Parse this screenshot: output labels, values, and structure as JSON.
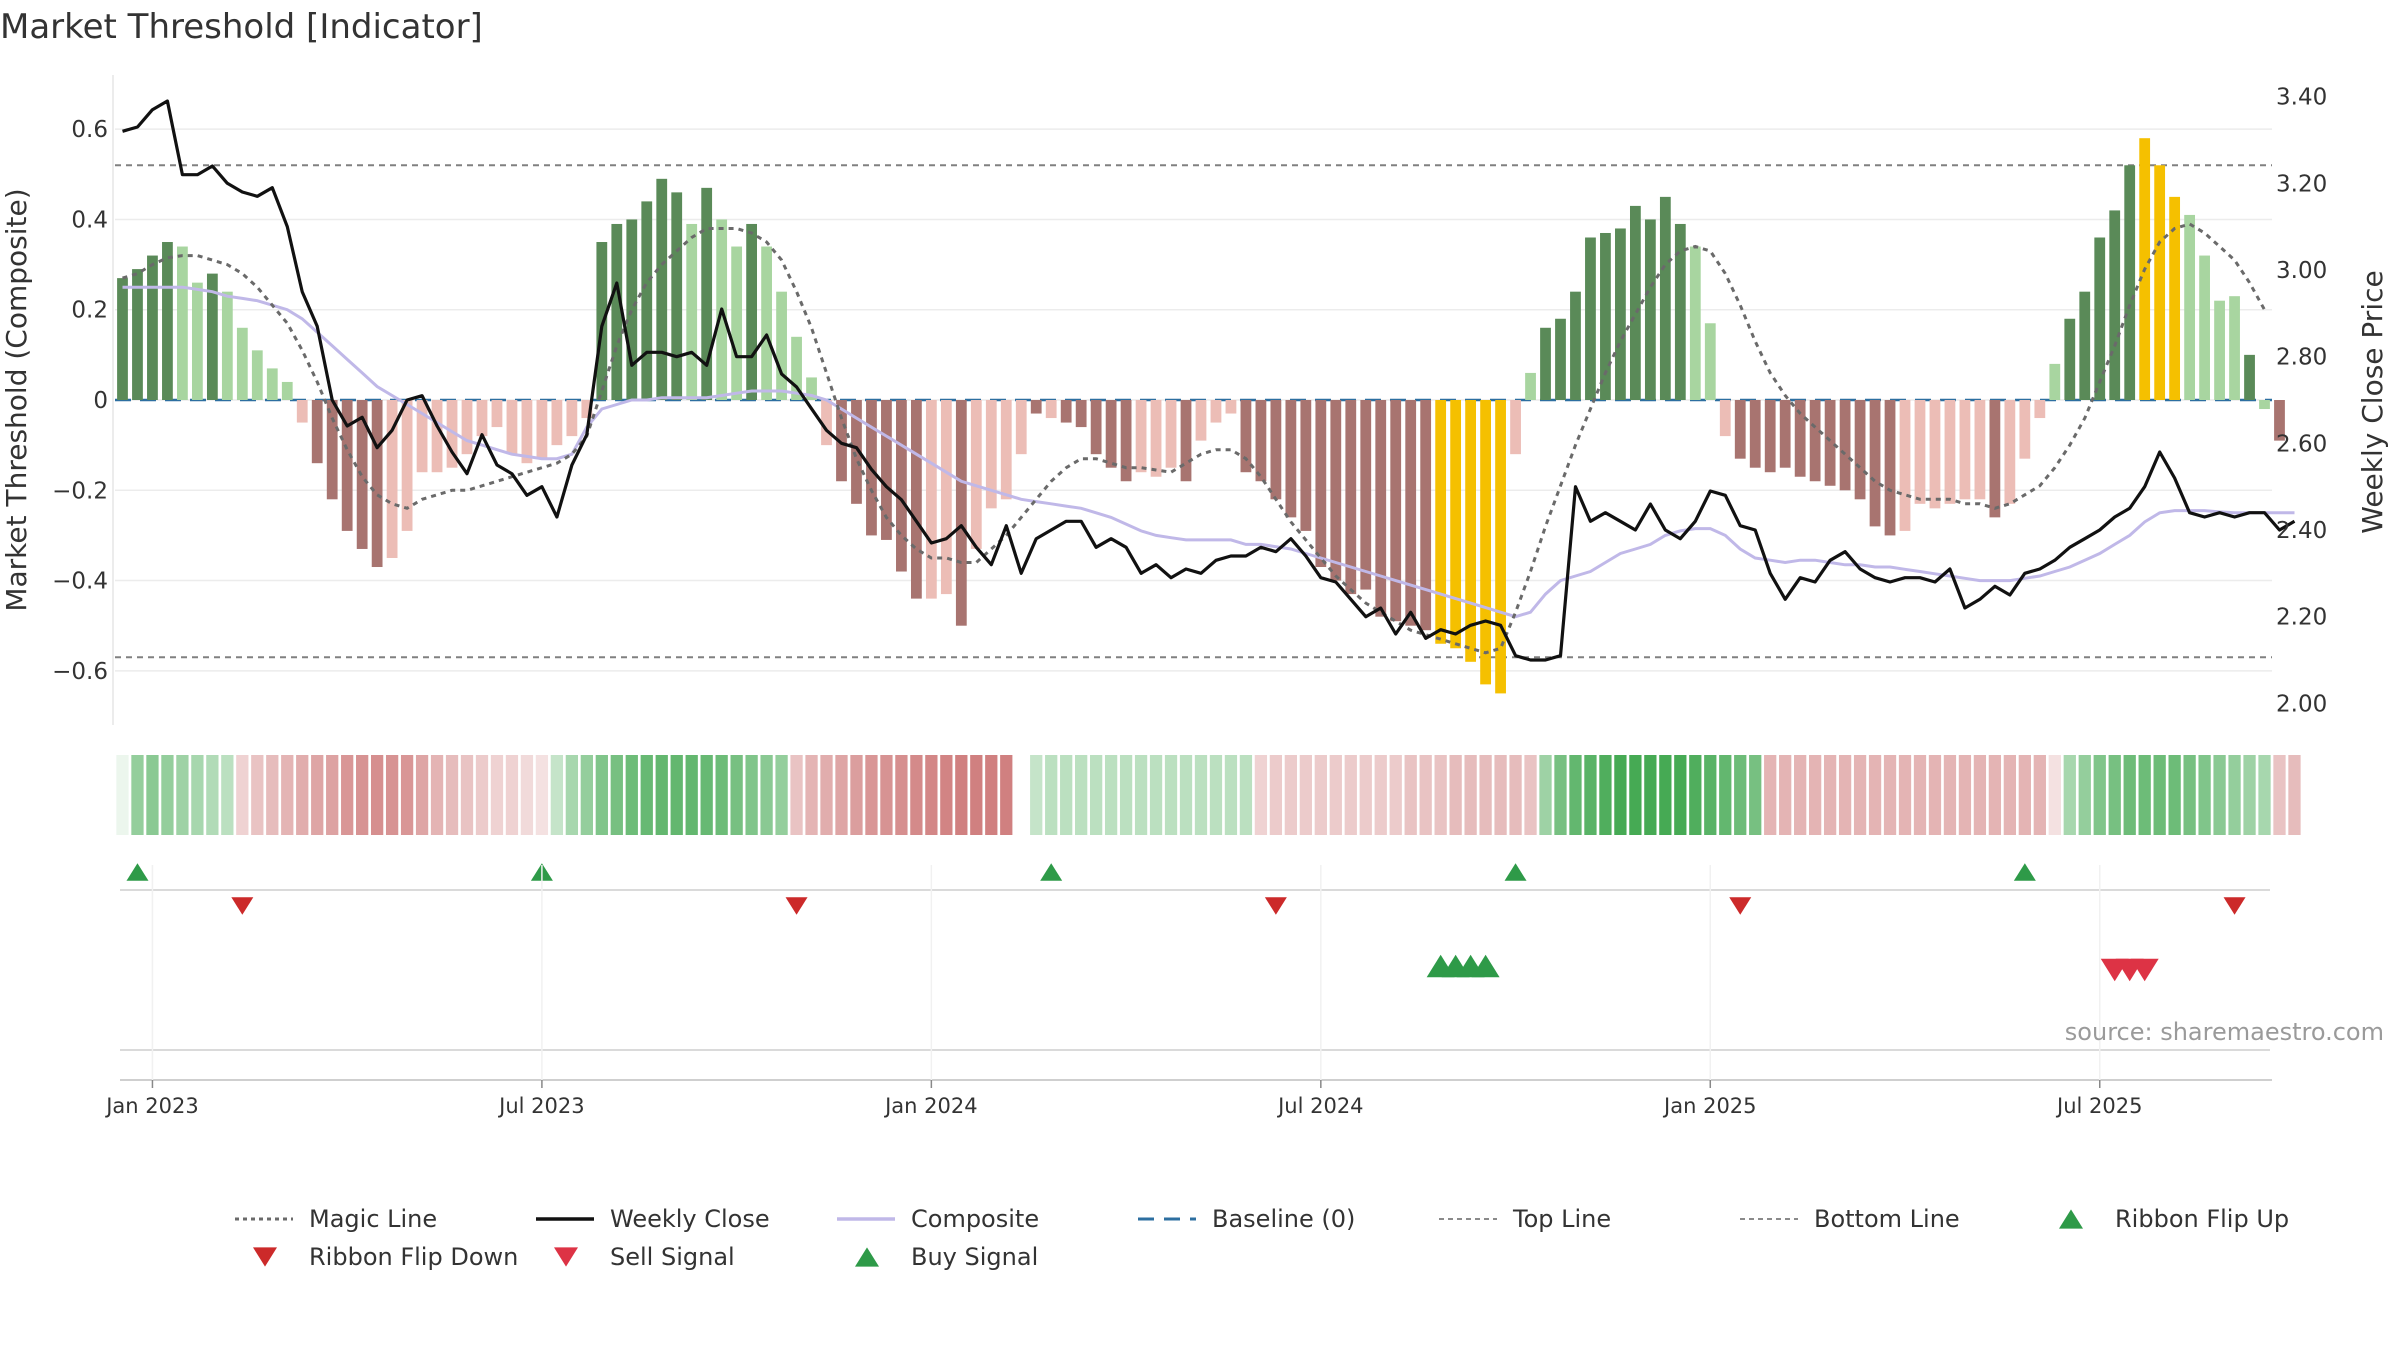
{
  "chart_data": {
    "type": "bar",
    "title": "Market Threshold [Indicator]",
    "ylabel_left": "Market Threshold (Composite)",
    "ylabel_right": "Weekly Close Price",
    "ylim_left": [
      -0.72,
      0.72
    ],
    "ylim_right": [
      1.95,
      3.45
    ],
    "yticks_left": [
      -0.6,
      -0.4,
      -0.2,
      0,
      0.2,
      0.4,
      0.6
    ],
    "yticks_left_labels": [
      "−0.6",
      "−0.4",
      "−0.2",
      "0",
      "0.2",
      "0.4",
      "0.6"
    ],
    "yticks_right": [
      2.0,
      2.2,
      2.4,
      2.6,
      2.8,
      3.0,
      3.2,
      3.4
    ],
    "yticks_right_labels": [
      "2.00",
      "2.20",
      "2.40",
      "2.60",
      "2.80",
      "3.00",
      "3.20",
      "3.40"
    ],
    "xticks": [
      {
        "label": "Jan 2023",
        "week": 2
      },
      {
        "label": "Jul 2023",
        "week": 28
      },
      {
        "label": "Jan 2024",
        "week": 54
      },
      {
        "label": "Jul 2024",
        "week": 80
      },
      {
        "label": "Jan 2025",
        "week": 106
      },
      {
        "label": "Jul 2025",
        "week": 132
      }
    ],
    "n_weeks": 144,
    "top_line": 0.52,
    "bottom_line": -0.57,
    "baseline": 0,
    "histogram": [
      0.27,
      0.29,
      0.32,
      0.35,
      0.34,
      0.26,
      0.28,
      0.24,
      0.16,
      0.11,
      0.07,
      0.04,
      -0.05,
      -0.14,
      -0.22,
      -0.29,
      -0.33,
      -0.37,
      -0.35,
      -0.29,
      -0.16,
      -0.16,
      -0.15,
      -0.12,
      -0.08,
      -0.06,
      -0.12,
      -0.14,
      -0.13,
      -0.1,
      -0.08,
      -0.04,
      0.35,
      0.39,
      0.4,
      0.44,
      0.49,
      0.46,
      0.39,
      0.47,
      0.4,
      0.34,
      0.39,
      0.34,
      0.24,
      0.14,
      0.05,
      -0.1,
      -0.18,
      -0.23,
      -0.3,
      -0.31,
      -0.38,
      -0.44,
      -0.44,
      -0.43,
      -0.5,
      -0.33,
      -0.24,
      -0.22,
      -0.12,
      -0.03,
      -0.04,
      -0.05,
      -0.06,
      -0.12,
      -0.15,
      -0.18,
      -0.16,
      -0.17,
      -0.15,
      -0.18,
      -0.09,
      -0.05,
      -0.03,
      -0.16,
      -0.18,
      -0.22,
      -0.26,
      -0.29,
      -0.37,
      -0.4,
      -0.43,
      -0.42,
      -0.48,
      -0.49,
      -0.5,
      -0.51,
      -0.54,
      -0.55,
      -0.58,
      -0.63,
      -0.65,
      -0.12,
      0.06,
      0.16,
      0.18,
      0.24,
      0.36,
      0.37,
      0.38,
      0.43,
      0.4,
      0.45,
      0.39,
      0.34,
      0.17,
      -0.08,
      -0.13,
      -0.15,
      -0.16,
      -0.15,
      -0.17,
      -0.18,
      -0.19,
      -0.2,
      -0.22,
      -0.28,
      -0.3,
      -0.29,
      -0.23,
      -0.24,
      -0.23,
      -0.22,
      -0.22,
      -0.26,
      -0.23,
      -0.13,
      -0.04,
      0.08,
      0.18,
      0.24,
      0.36,
      0.42,
      0.52,
      0.58,
      0.52,
      0.45,
      0.41,
      0.32,
      0.22,
      0.23,
      0.1,
      -0.02,
      -0.09
    ],
    "hist_color_class": [
      "pos",
      "pos",
      "pos",
      "pos",
      "pos",
      "pos",
      "pos",
      "pos",
      "pos",
      "pos",
      "pos",
      "pos",
      "neg",
      "neg",
      "neg",
      "neg",
      "neg",
      "neg",
      "neg",
      "neg",
      "neg",
      "neg",
      "neg",
      "neg",
      "neg",
      "neg",
      "neg",
      "neg",
      "neg",
      "neg",
      "neg",
      "neg",
      "pos",
      "pos",
      "pos",
      "pos",
      "pos",
      "pos",
      "pos",
      "pos",
      "pos",
      "pos",
      "pos",
      "pos",
      "pos",
      "pos",
      "pos",
      "neg",
      "neg",
      "neg",
      "neg",
      "neg",
      "neg",
      "neg",
      "neg",
      "neg",
      "neg",
      "neg",
      "neg",
      "neg",
      "neg",
      "neg",
      "neg",
      "neg",
      "neg",
      "neg",
      "neg",
      "neg",
      "neg",
      "neg",
      "neg",
      "neg",
      "neg",
      "neg",
      "neg",
      "neg",
      "neg",
      "neg",
      "neg",
      "neg",
      "neg",
      "neg",
      "neg",
      "neg",
      "neg",
      "neg",
      "neg",
      "neg",
      "extreme",
      "extreme",
      "extreme",
      "extreme",
      "extreme",
      "neg",
      "pos",
      "pos",
      "pos",
      "pos",
      "pos",
      "pos",
      "pos",
      "pos",
      "pos",
      "pos",
      "pos",
      "pos",
      "pos",
      "neg",
      "neg",
      "neg",
      "neg",
      "neg",
      "neg",
      "neg",
      "neg",
      "neg",
      "neg",
      "neg",
      "neg",
      "neg",
      "neg",
      "neg",
      "neg",
      "neg",
      "neg",
      "neg",
      "neg",
      "neg",
      "neg",
      "pos",
      "pos",
      "pos",
      "pos",
      "pos",
      "pos",
      "extreme",
      "extreme",
      "extreme",
      "pos",
      "pos",
      "pos",
      "pos",
      "pos",
      "pos",
      "neg",
      "neg"
    ],
    "hist_dark": [
      true,
      true,
      true,
      true,
      false,
      false,
      true,
      false,
      false,
      false,
      false,
      false,
      false,
      true,
      true,
      true,
      true,
      true,
      false,
      false,
      false,
      false,
      false,
      false,
      false,
      false,
      false,
      false,
      false,
      false,
      false,
      false,
      true,
      true,
      true,
      true,
      true,
      true,
      false,
      true,
      false,
      false,
      true,
      false,
      false,
      false,
      false,
      false,
      true,
      true,
      true,
      true,
      true,
      true,
      false,
      false,
      true,
      false,
      false,
      false,
      false,
      true,
      false,
      true,
      true,
      true,
      true,
      true,
      false,
      false,
      false,
      true,
      false,
      false,
      false,
      true,
      true,
      true,
      true,
      true,
      true,
      true,
      true,
      true,
      true,
      true,
      true,
      true,
      true,
      true,
      true,
      true,
      true,
      false,
      false,
      true,
      true,
      true,
      true,
      true,
      true,
      true,
      true,
      true,
      true,
      false,
      false,
      false,
      true,
      true,
      true,
      true,
      true,
      true,
      true,
      true,
      true,
      true,
      true,
      false,
      false,
      false,
      false,
      false,
      false,
      true,
      false,
      false,
      false,
      false,
      true,
      true,
      true,
      true,
      true,
      true,
      true,
      false,
      false,
      false,
      false,
      false,
      true,
      false,
      true
    ],
    "weekly_close": [
      3.32,
      3.33,
      3.37,
      3.39,
      3.22,
      3.22,
      3.24,
      3.2,
      3.18,
      3.17,
      3.19,
      3.1,
      2.95,
      2.87,
      2.7,
      2.64,
      2.66,
      2.59,
      2.63,
      2.7,
      2.71,
      2.64,
      2.58,
      2.53,
      2.62,
      2.55,
      2.53,
      2.48,
      2.5,
      2.43,
      2.55,
      2.62,
      2.87,
      2.97,
      2.78,
      2.81,
      2.81,
      2.8,
      2.81,
      2.78,
      2.91,
      2.8,
      2.8,
      2.85,
      2.76,
      2.73,
      2.68,
      2.63,
      2.6,
      2.59,
      2.54,
      2.5,
      2.47,
      2.42,
      2.37,
      2.38,
      2.41,
      2.36,
      2.32,
      2.41,
      2.3,
      2.38,
      2.4,
      2.42,
      2.42,
      2.36,
      2.38,
      2.36,
      2.3,
      2.32,
      2.29,
      2.31,
      2.3,
      2.33,
      2.34,
      2.34,
      2.36,
      2.35,
      2.38,
      2.34,
      2.29,
      2.28,
      2.24,
      2.2,
      2.22,
      2.16,
      2.21,
      2.15,
      2.17,
      2.16,
      2.18,
      2.19,
      2.18,
      2.11,
      2.1,
      2.1,
      2.11,
      2.5,
      2.42,
      2.44,
      2.42,
      2.4,
      2.46,
      2.4,
      2.38,
      2.42,
      2.49,
      2.48,
      2.41,
      2.4,
      2.3,
      2.24,
      2.29,
      2.28,
      2.33,
      2.35,
      2.31,
      2.29,
      2.28,
      2.29,
      2.29,
      2.28,
      2.31,
      2.22,
      2.24,
      2.27,
      2.25,
      2.3,
      2.31,
      2.33,
      2.36,
      2.38,
      2.4,
      2.43,
      2.45,
      2.5,
      2.58,
      2.52,
      2.44,
      2.43,
      2.44,
      2.43,
      2.44,
      2.44,
      2.4,
      2.42
    ],
    "composite": [
      0.25,
      0.25,
      0.25,
      0.25,
      0.25,
      0.245,
      0.24,
      0.23,
      0.225,
      0.22,
      0.21,
      0.2,
      0.18,
      0.15,
      0.12,
      0.09,
      0.06,
      0.03,
      0.01,
      -0.01,
      -0.03,
      -0.05,
      -0.07,
      -0.09,
      -0.1,
      -0.11,
      -0.12,
      -0.125,
      -0.13,
      -0.13,
      -0.12,
      -0.06,
      -0.02,
      -0.01,
      0,
      0,
      0.005,
      0.005,
      0.005,
      0.005,
      0.01,
      0.015,
      0.02,
      0.02,
      0.02,
      0.015,
      0.01,
      0,
      -0.02,
      -0.04,
      -0.06,
      -0.08,
      -0.1,
      -0.12,
      -0.14,
      -0.16,
      -0.18,
      -0.19,
      -0.2,
      -0.21,
      -0.22,
      -0.225,
      -0.23,
      -0.235,
      -0.24,
      -0.25,
      -0.26,
      -0.275,
      -0.29,
      -0.3,
      -0.305,
      -0.31,
      -0.31,
      -0.31,
      -0.31,
      -0.32,
      -0.32,
      -0.325,
      -0.33,
      -0.34,
      -0.35,
      -0.36,
      -0.37,
      -0.38,
      -0.39,
      -0.4,
      -0.41,
      -0.42,
      -0.43,
      -0.44,
      -0.45,
      -0.46,
      -0.47,
      -0.48,
      -0.47,
      -0.43,
      -0.4,
      -0.39,
      -0.38,
      -0.36,
      -0.34,
      -0.33,
      -0.32,
      -0.3,
      -0.29,
      -0.285,
      -0.285,
      -0.3,
      -0.33,
      -0.35,
      -0.355,
      -0.36,
      -0.355,
      -0.355,
      -0.36,
      -0.365,
      -0.365,
      -0.37,
      -0.37,
      -0.375,
      -0.38,
      -0.385,
      -0.39,
      -0.395,
      -0.4,
      -0.4,
      -0.4,
      -0.395,
      -0.39,
      -0.38,
      -0.37,
      -0.355,
      -0.34,
      -0.32,
      -0.3,
      -0.27,
      -0.25,
      -0.245,
      -0.245,
      -0.245,
      -0.248,
      -0.25,
      -0.25,
      -0.25,
      -0.25,
      -0.25
    ],
    "magic_line": [
      0.27,
      0.28,
      0.3,
      0.315,
      0.32,
      0.32,
      0.31,
      0.3,
      0.28,
      0.25,
      0.21,
      0.17,
      0.11,
      0.04,
      -0.04,
      -0.11,
      -0.17,
      -0.21,
      -0.23,
      -0.24,
      -0.22,
      -0.21,
      -0.2,
      -0.2,
      -0.19,
      -0.18,
      -0.17,
      -0.16,
      -0.15,
      -0.14,
      -0.12,
      -0.08,
      0.02,
      0.12,
      0.2,
      0.26,
      0.3,
      0.33,
      0.36,
      0.38,
      0.38,
      0.38,
      0.37,
      0.35,
      0.31,
      0.24,
      0.16,
      0.06,
      -0.04,
      -0.13,
      -0.2,
      -0.26,
      -0.3,
      -0.33,
      -0.35,
      -0.35,
      -0.36,
      -0.36,
      -0.33,
      -0.3,
      -0.26,
      -0.22,
      -0.18,
      -0.15,
      -0.13,
      -0.13,
      -0.14,
      -0.15,
      -0.15,
      -0.155,
      -0.16,
      -0.14,
      -0.12,
      -0.11,
      -0.11,
      -0.13,
      -0.17,
      -0.22,
      -0.27,
      -0.31,
      -0.35,
      -0.39,
      -0.42,
      -0.45,
      -0.47,
      -0.49,
      -0.51,
      -0.52,
      -0.53,
      -0.54,
      -0.55,
      -0.56,
      -0.55,
      -0.47,
      -0.38,
      -0.28,
      -0.19,
      -0.1,
      -0.02,
      0.06,
      0.13,
      0.19,
      0.25,
      0.3,
      0.33,
      0.34,
      0.33,
      0.28,
      0.21,
      0.13,
      0.06,
      0.01,
      -0.03,
      -0.06,
      -0.09,
      -0.12,
      -0.15,
      -0.18,
      -0.2,
      -0.21,
      -0.22,
      -0.22,
      -0.22,
      -0.23,
      -0.23,
      -0.24,
      -0.23,
      -0.21,
      -0.19,
      -0.15,
      -0.1,
      -0.04,
      0.04,
      0.12,
      0.21,
      0.29,
      0.35,
      0.38,
      0.39,
      0.37,
      0.34,
      0.31,
      0.26,
      0.2
    ],
    "ribbon": [
      0.1,
      0.55,
      0.6,
      0.55,
      0.5,
      0.45,
      0.4,
      0.35,
      -0.3,
      -0.4,
      -0.45,
      -0.5,
      -0.55,
      -0.6,
      -0.62,
      -0.7,
      -0.72,
      -0.75,
      -0.72,
      -0.7,
      -0.6,
      -0.5,
      -0.45,
      -0.4,
      -0.35,
      -0.3,
      -0.3,
      -0.25,
      -0.2,
      0.3,
      0.45,
      0.55,
      0.65,
      0.7,
      0.75,
      0.78,
      0.8,
      0.8,
      0.8,
      0.78,
      0.75,
      0.7,
      0.65,
      0.6,
      0.55,
      -0.4,
      -0.5,
      -0.55,
      -0.6,
      -0.65,
      -0.7,
      -0.72,
      -0.75,
      -0.78,
      -0.8,
      -0.82,
      -0.85,
      -0.85,
      -0.85,
      -0.85,
      null,
      0.3,
      0.35,
      0.35,
      0.35,
      0.35,
      0.35,
      0.35,
      0.35,
      0.35,
      0.35,
      0.35,
      0.35,
      0.35,
      0.35,
      0.35,
      -0.3,
      -0.35,
      -0.35,
      -0.35,
      -0.35,
      -0.35,
      -0.35,
      -0.35,
      -0.35,
      -0.35,
      -0.4,
      -0.4,
      -0.4,
      -0.45,
      -0.45,
      -0.45,
      -0.45,
      -0.45,
      -0.4,
      0.5,
      0.7,
      0.8,
      0.85,
      0.9,
      0.95,
      0.95,
      0.95,
      0.95,
      0.95,
      0.9,
      0.85,
      0.8,
      0.75,
      0.7,
      -0.5,
      -0.5,
      -0.5,
      -0.5,
      -0.5,
      -0.5,
      -0.5,
      -0.5,
      -0.5,
      -0.5,
      -0.5,
      -0.5,
      -0.5,
      -0.5,
      -0.5,
      -0.5,
      -0.5,
      -0.5,
      -0.5,
      -0.2,
      0.45,
      0.55,
      0.65,
      0.7,
      0.75,
      0.75,
      0.75,
      0.75,
      0.7,
      0.65,
      0.6,
      0.55,
      0.5,
      0.45,
      -0.4,
      -0.45
    ],
    "ribbon_flip_up": [
      1,
      28,
      62,
      93,
      127
    ],
    "ribbon_flip_down": [
      8,
      45,
      77,
      108,
      141
    ],
    "buy_signal": [
      88,
      89,
      90,
      91
    ],
    "sell_signal": [
      133,
      134,
      135
    ],
    "series_names": [
      "Magic Line",
      "Weekly Close",
      "Composite",
      "Baseline (0)",
      "Top Line",
      "Bottom Line",
      "Ribbon Flip Up",
      "Ribbon Flip Down",
      "Sell Signal",
      "Buy Signal"
    ],
    "source_note": "source: sharemaestro.com",
    "colors": {
      "pos_light": "#a8d5a0",
      "pos_dark": "#5a8a58",
      "neg_light": "#ecbdb6",
      "neg_dark": "#a87470",
      "extreme": "#f5c000",
      "weekly_close": "#111111",
      "composite": "#c0b8e8",
      "magic_line": "#6a6a6a",
      "baseline": "#2d6fa0",
      "flip_up": "#2e9a48",
      "flip_down": "#cc2a2a",
      "sell": "#dd3345",
      "buy": "#2e9a48"
    }
  }
}
